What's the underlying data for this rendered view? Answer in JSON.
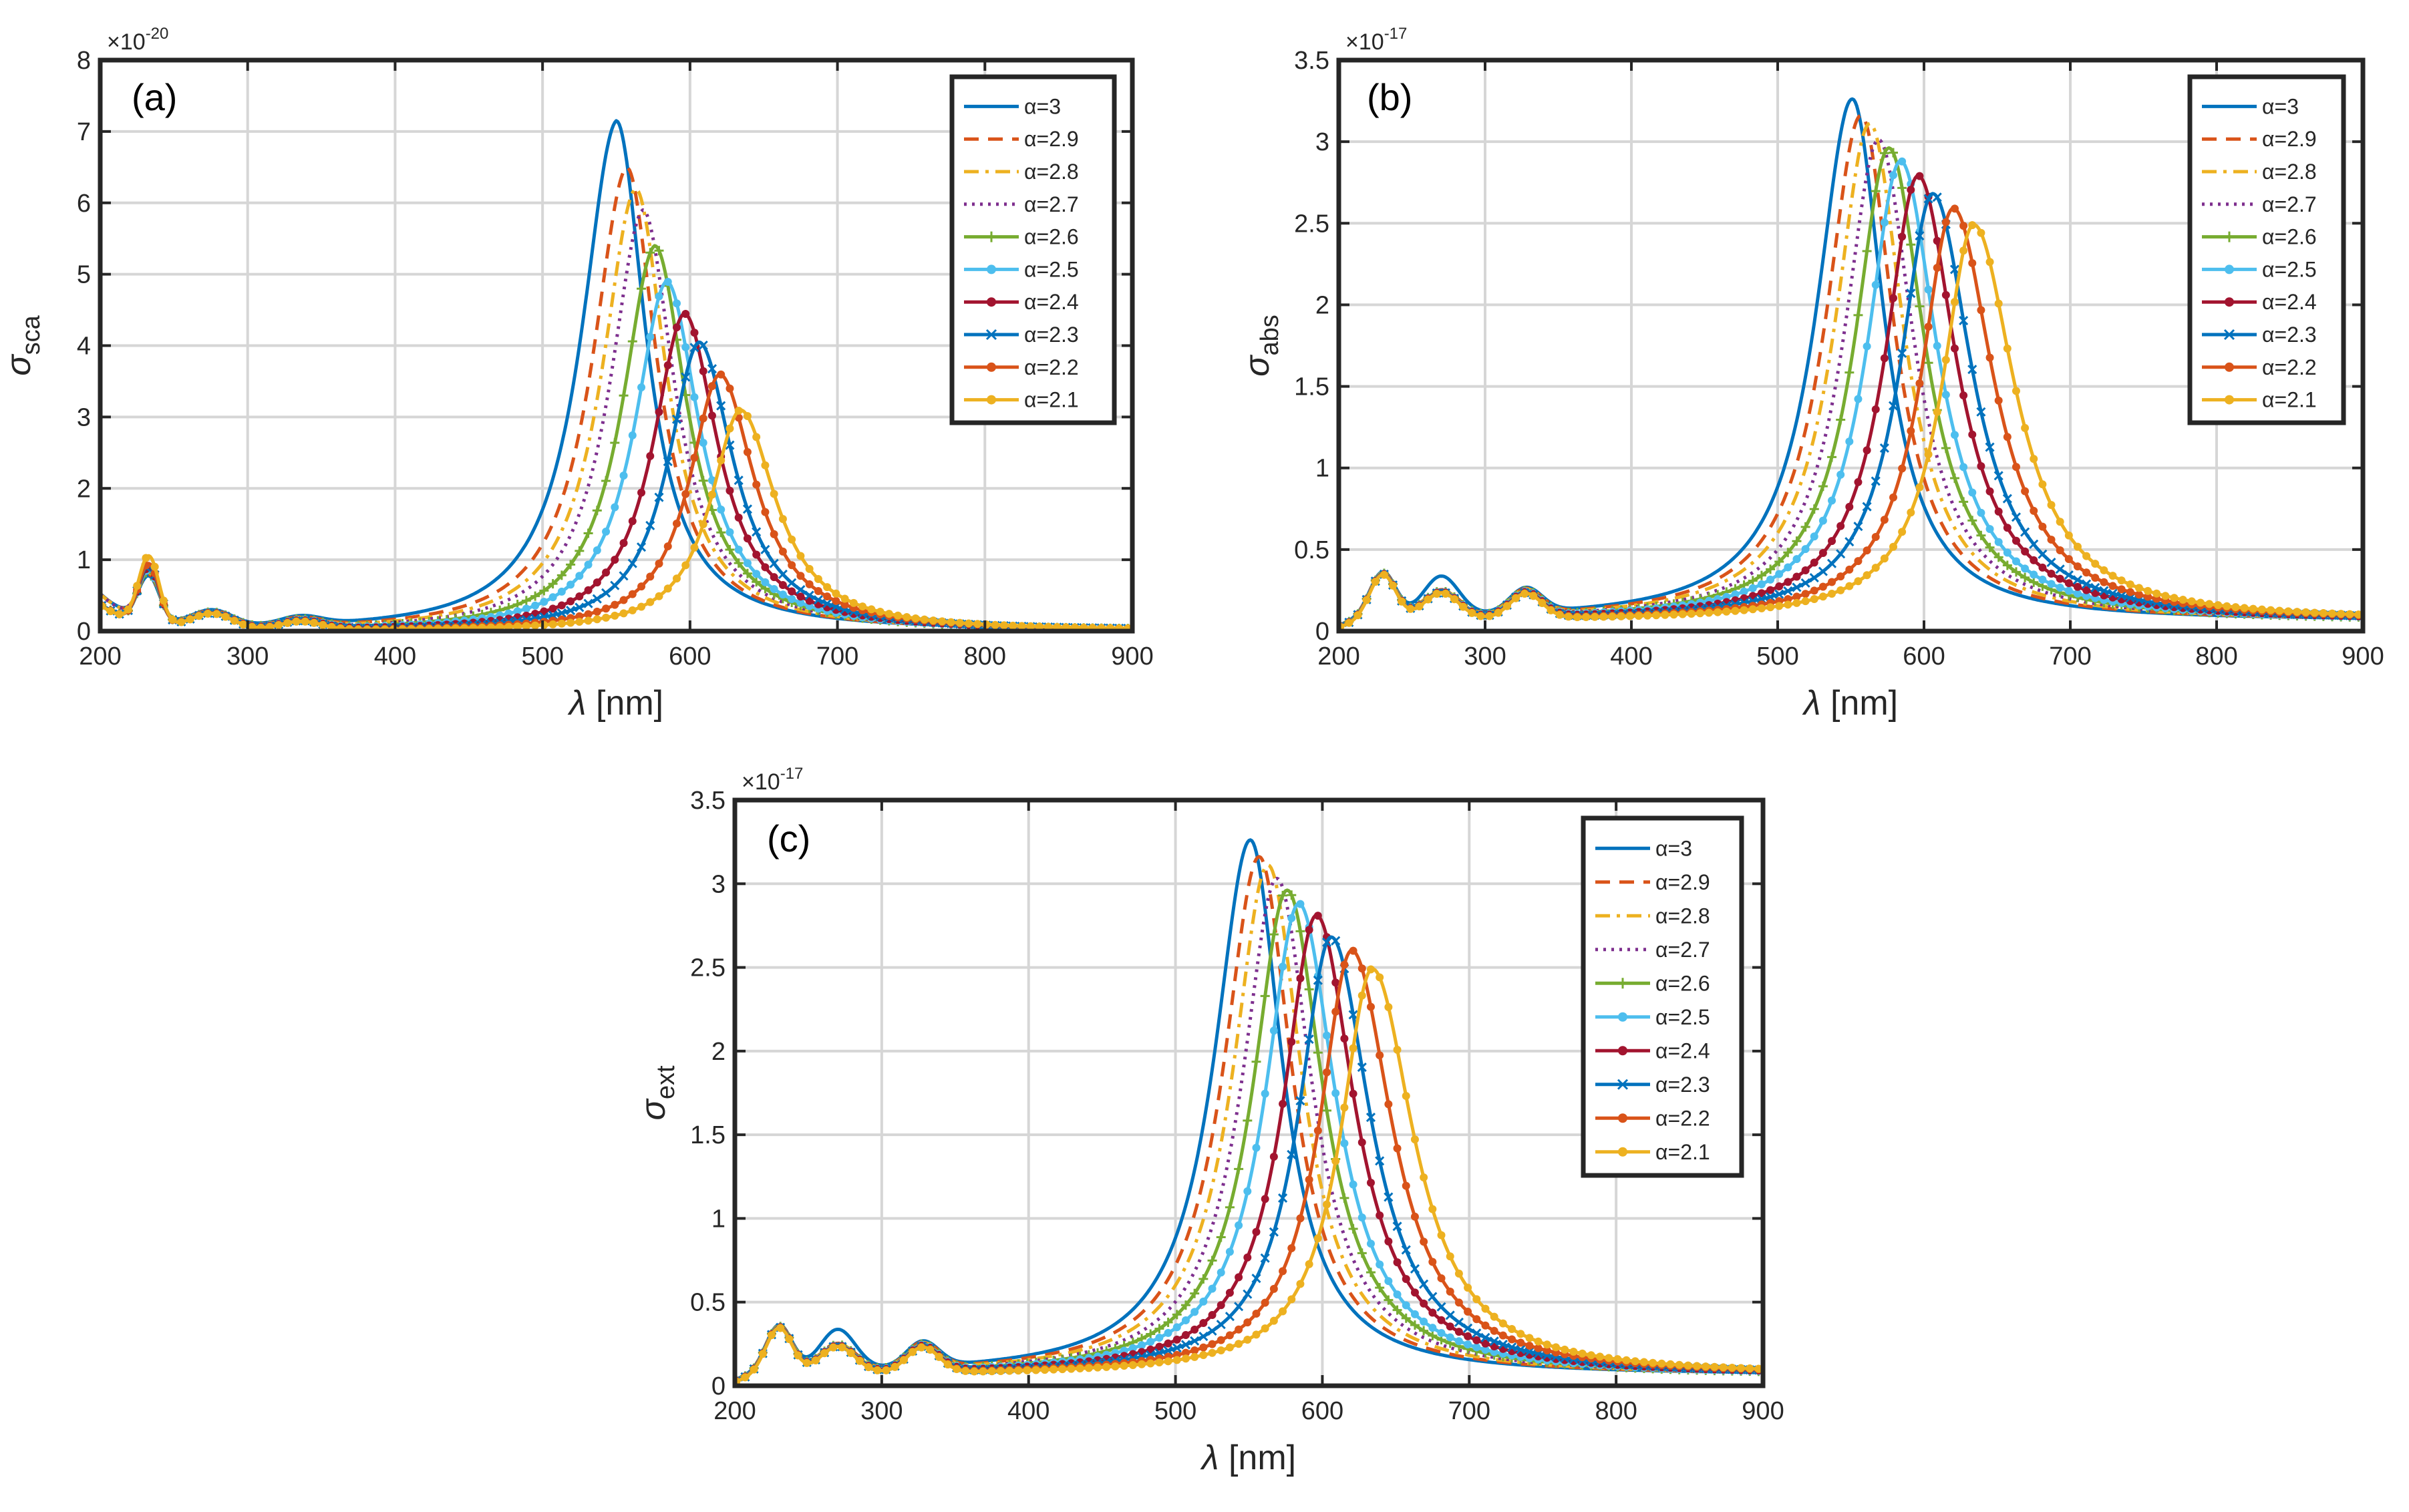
{
  "figure": {
    "series_styles": [
      {
        "alpha_label": "α=3",
        "color": "#0072BD",
        "dash": "solid",
        "marker": "none"
      },
      {
        "alpha_label": "α=2.9",
        "color": "#D95319",
        "dash": "dashed",
        "marker": "none"
      },
      {
        "alpha_label": "α=2.8",
        "color": "#EDB120",
        "dash": "dashdot",
        "marker": "none"
      },
      {
        "alpha_label": "α=2.7",
        "color": "#7E2F8E",
        "dash": "dotted",
        "marker": "none"
      },
      {
        "alpha_label": "α=2.6",
        "color": "#77AC30",
        "dash": "solid",
        "marker": "plus"
      },
      {
        "alpha_label": "α=2.5",
        "color": "#4DBEEE",
        "dash": "solid",
        "marker": "circle"
      },
      {
        "alpha_label": "α=2.4",
        "color": "#A2142F",
        "dash": "solid",
        "marker": "circle"
      },
      {
        "alpha_label": "α=2.3",
        "color": "#0072BD",
        "dash": "solid",
        "marker": "x"
      },
      {
        "alpha_label": "α=2.2",
        "color": "#D95319",
        "dash": "solid",
        "marker": "circle"
      },
      {
        "alpha_label": "α=2.1",
        "color": "#EDB120",
        "dash": "solid",
        "marker": "circle"
      }
    ]
  },
  "chart_data": [
    {
      "type": "line",
      "panel_label": "(a)",
      "xlabel_symbol": "λ",
      "xlabel_unit": "[nm]",
      "ylabel_symbol": "σ",
      "ylabel_sub": "sca",
      "exponent_base": "×10",
      "exponent_power": "-20",
      "xlim": [
        200,
        900
      ],
      "ylim": [
        0,
        8
      ],
      "xticks": [
        200,
        300,
        400,
        500,
        600,
        700,
        800,
        900
      ],
      "yticks": [
        0,
        1,
        2,
        3,
        4,
        5,
        6,
        7,
        8
      ],
      "ytick_labels": [
        "0",
        "1",
        "2",
        "3",
        "4",
        "5",
        "6",
        "7",
        "8"
      ],
      "grid": true,
      "legend_position": "top-right",
      "series": [
        {
          "name": "α=3",
          "peak_x": 550,
          "peak_y": 7.15
        },
        {
          "name": "α=2.9",
          "peak_x": 557,
          "peak_y": 6.5
        },
        {
          "name": "α=2.8",
          "peak_x": 563,
          "peak_y": 6.2
        },
        {
          "name": "α=2.7",
          "peak_x": 568,
          "peak_y": 5.9
        },
        {
          "name": "α=2.6",
          "peak_x": 576,
          "peak_y": 5.4
        },
        {
          "name": "α=2.5",
          "peak_x": 584,
          "peak_y": 4.9
        },
        {
          "name": "α=2.4",
          "peak_x": 596,
          "peak_y": 4.45
        },
        {
          "name": "α=2.3",
          "peak_x": 606,
          "peak_y": 4.05
        },
        {
          "name": "α=2.2",
          "peak_x": 620,
          "peak_y": 3.6
        },
        {
          "name": "α=2.1",
          "peak_x": 634,
          "peak_y": 3.1
        }
      ]
    },
    {
      "type": "line",
      "panel_label": "(b)",
      "xlabel_symbol": "λ",
      "xlabel_unit": "[nm]",
      "ylabel_symbol": "σ",
      "ylabel_sub": "abs",
      "exponent_base": "×10",
      "exponent_power": "-17",
      "xlim": [
        200,
        900
      ],
      "ylim": [
        0,
        3.5
      ],
      "xticks": [
        200,
        300,
        400,
        500,
        600,
        700,
        800,
        900
      ],
      "yticks": [
        0,
        0.5,
        1,
        1.5,
        2,
        2.5,
        3,
        3.5
      ],
      "ytick_labels": [
        "0",
        "0.5",
        "1",
        "1.5",
        "2",
        "2.5",
        "3",
        "3.5"
      ],
      "grid": true,
      "legend_position": "top-right",
      "series": [
        {
          "name": "α=3",
          "peak_x": 551,
          "peak_y": 3.2
        },
        {
          "name": "α=2.9",
          "peak_x": 557,
          "peak_y": 3.1
        },
        {
          "name": "α=2.8",
          "peak_x": 563,
          "peak_y": 3.05
        },
        {
          "name": "α=2.7",
          "peak_x": 569,
          "peak_y": 2.95
        },
        {
          "name": "α=2.6",
          "peak_x": 576,
          "peak_y": 2.9
        },
        {
          "name": "α=2.5",
          "peak_x": 584,
          "peak_y": 2.82
        },
        {
          "name": "α=2.4",
          "peak_x": 596,
          "peak_y": 2.73
        },
        {
          "name": "α=2.3",
          "peak_x": 606,
          "peak_y": 2.62
        },
        {
          "name": "α=2.2",
          "peak_x": 620,
          "peak_y": 2.53
        },
        {
          "name": "α=2.1",
          "peak_x": 634,
          "peak_y": 2.43
        }
      ]
    },
    {
      "type": "line",
      "panel_label": "(c)",
      "xlabel_symbol": "λ",
      "xlabel_unit": "[nm]",
      "ylabel_symbol": "σ",
      "ylabel_sub": "ext",
      "exponent_base": "×10",
      "exponent_power": "-17",
      "xlim": [
        200,
        900
      ],
      "ylim": [
        0,
        3.5
      ],
      "xticks": [
        200,
        300,
        400,
        500,
        600,
        700,
        800,
        900
      ],
      "yticks": [
        0,
        0.5,
        1,
        1.5,
        2,
        2.5,
        3,
        3.5
      ],
      "ytick_labels": [
        "0",
        "0.5",
        "1",
        "1.5",
        "2",
        "2.5",
        "3",
        "3.5"
      ],
      "grid": true,
      "legend_position": "top-right",
      "series": [
        {
          "name": "α=3",
          "peak_x": 551,
          "peak_y": 3.2
        },
        {
          "name": "α=2.9",
          "peak_x": 557,
          "peak_y": 3.1
        },
        {
          "name": "α=2.8",
          "peak_x": 563,
          "peak_y": 3.05
        },
        {
          "name": "α=2.7",
          "peak_x": 569,
          "peak_y": 2.97
        },
        {
          "name": "α=2.6",
          "peak_x": 576,
          "peak_y": 2.9
        },
        {
          "name": "α=2.5",
          "peak_x": 584,
          "peak_y": 2.82
        },
        {
          "name": "α=2.4",
          "peak_x": 596,
          "peak_y": 2.75
        },
        {
          "name": "α=2.3",
          "peak_x": 606,
          "peak_y": 2.62
        },
        {
          "name": "α=2.2",
          "peak_x": 620,
          "peak_y": 2.54
        },
        {
          "name": "α=2.1",
          "peak_x": 634,
          "peak_y": 2.43
        }
      ]
    }
  ]
}
